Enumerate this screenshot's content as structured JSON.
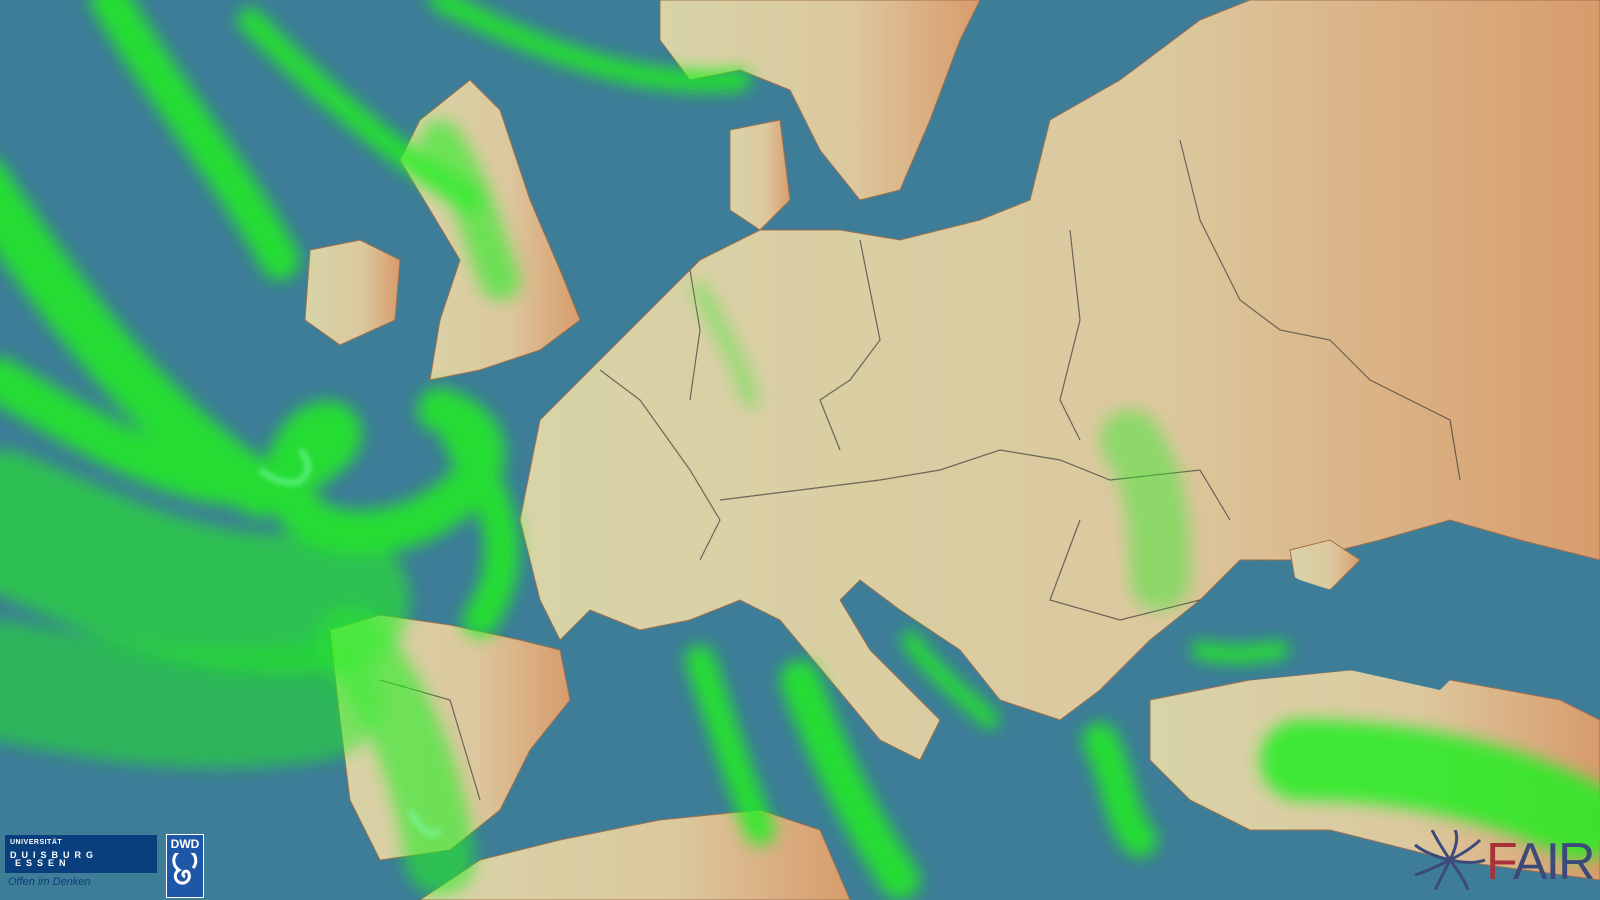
{
  "map": {
    "type": "weather-precipitation-overlay",
    "region": "Europe",
    "colors": {
      "sea": "#3d7d98",
      "land_low": "#d9d3a6",
      "land_east": "#d9a172",
      "precip": "#22ee22",
      "borders": "#333333"
    }
  },
  "logos": {
    "ude": {
      "line1": "UNIVERSITÄT",
      "line2": "DUISBURG",
      "line3": "ESSEN",
      "tagline": "Offen im Denken"
    },
    "dwd": {
      "text": "DWD"
    },
    "fair": {
      "text_f": "F",
      "text_rest": "AIR"
    }
  }
}
